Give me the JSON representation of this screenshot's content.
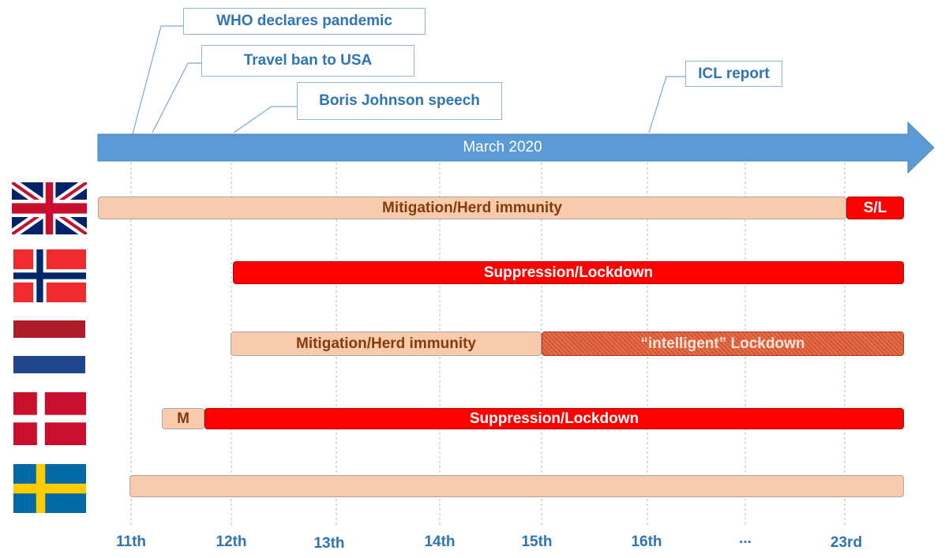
{
  "timeline": {
    "label": "March 2020",
    "color": "#5b9bd5",
    "ticks": [
      {
        "label": "11th",
        "x": 166
      },
      {
        "label": "12th",
        "x": 293
      },
      {
        "label": "13th",
        "x": 426
      },
      {
        "label": "14th",
        "x": 557
      },
      {
        "label": "15th",
        "x": 686
      },
      {
        "label": "16th",
        "x": 820
      },
      {
        "label": "...",
        "x": 944
      },
      {
        "label": "23rd",
        "x": 1070
      }
    ]
  },
  "events": [
    {
      "label": "WHO declares pandemic"
    },
    {
      "label": "Travel ban to USA"
    },
    {
      "label": "Boris Johnson speech"
    },
    {
      "label": "ICL report"
    }
  ],
  "countries": [
    {
      "flag": "united-kingdom",
      "phases": [
        {
          "label": "Mitigation/Herd immunity",
          "type": "mitigation"
        },
        {
          "label": "S/L",
          "type": "suppression"
        }
      ]
    },
    {
      "flag": "norway",
      "phases": [
        {
          "label": "Suppression/Lockdown",
          "type": "suppression"
        }
      ]
    },
    {
      "flag": "netherlands",
      "phases": [
        {
          "label": "Mitigation/Herd immunity",
          "type": "mitigation"
        },
        {
          "label": "“intelligent” Lockdown",
          "type": "intelligent-lockdown"
        }
      ]
    },
    {
      "flag": "denmark",
      "phases": [
        {
          "label": "M",
          "type": "mitigation"
        },
        {
          "label": "Suppression/Lockdown",
          "type": "suppression"
        }
      ]
    },
    {
      "flag": "sweden",
      "phases": [
        {
          "label": "",
          "type": "mitigation"
        }
      ]
    }
  ],
  "colors": {
    "mitigation": "#f8cbad",
    "suppression": "#ff0000",
    "intelligent_lockdown": "#d9532c",
    "text_blue": "#2e75b6",
    "gridline": "#9dc3e6"
  }
}
